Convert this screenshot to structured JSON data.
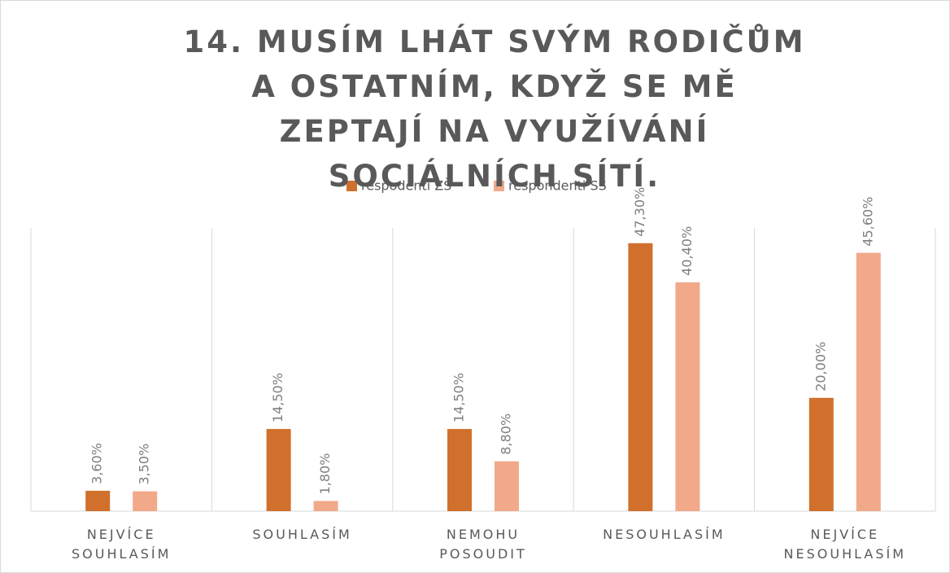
{
  "chart_data": {
    "type": "bar",
    "title": "14. MUSÍM LHÁT SVÝM RODIČŮM A OSTATNÍM, KDYŽ SE MĚ ZEPTAJÍ NA VYUŽÍVÁNÍ SOCIÁLNÍCH SÍTÍ.",
    "categories": [
      "NEJVÍCE SOUHLASÍM",
      "SOUHLASÍM",
      "NEMOHU POSOUDIT",
      "NESOUHLASÍM",
      "NEJVÍCE NESOUHLASÍM"
    ],
    "series": [
      {
        "name": "respodenti ZŠ",
        "color": "#d0702c",
        "values": [
          3.6,
          14.5,
          14.5,
          47.3,
          20.0
        ],
        "value_labels": [
          "3,60%",
          "14,50%",
          "14,50%",
          "47,30%",
          "20,00%"
        ]
      },
      {
        "name": "respondenti SŠ",
        "color": "#f2a98a",
        "values": [
          3.5,
          1.8,
          8.8,
          40.4,
          45.6
        ],
        "value_labels": [
          "3,50%",
          "1,80%",
          "8,80%",
          "40,40%",
          "45,60%"
        ]
      }
    ],
    "ylim": [
      0,
      50
    ],
    "legend": "top"
  }
}
